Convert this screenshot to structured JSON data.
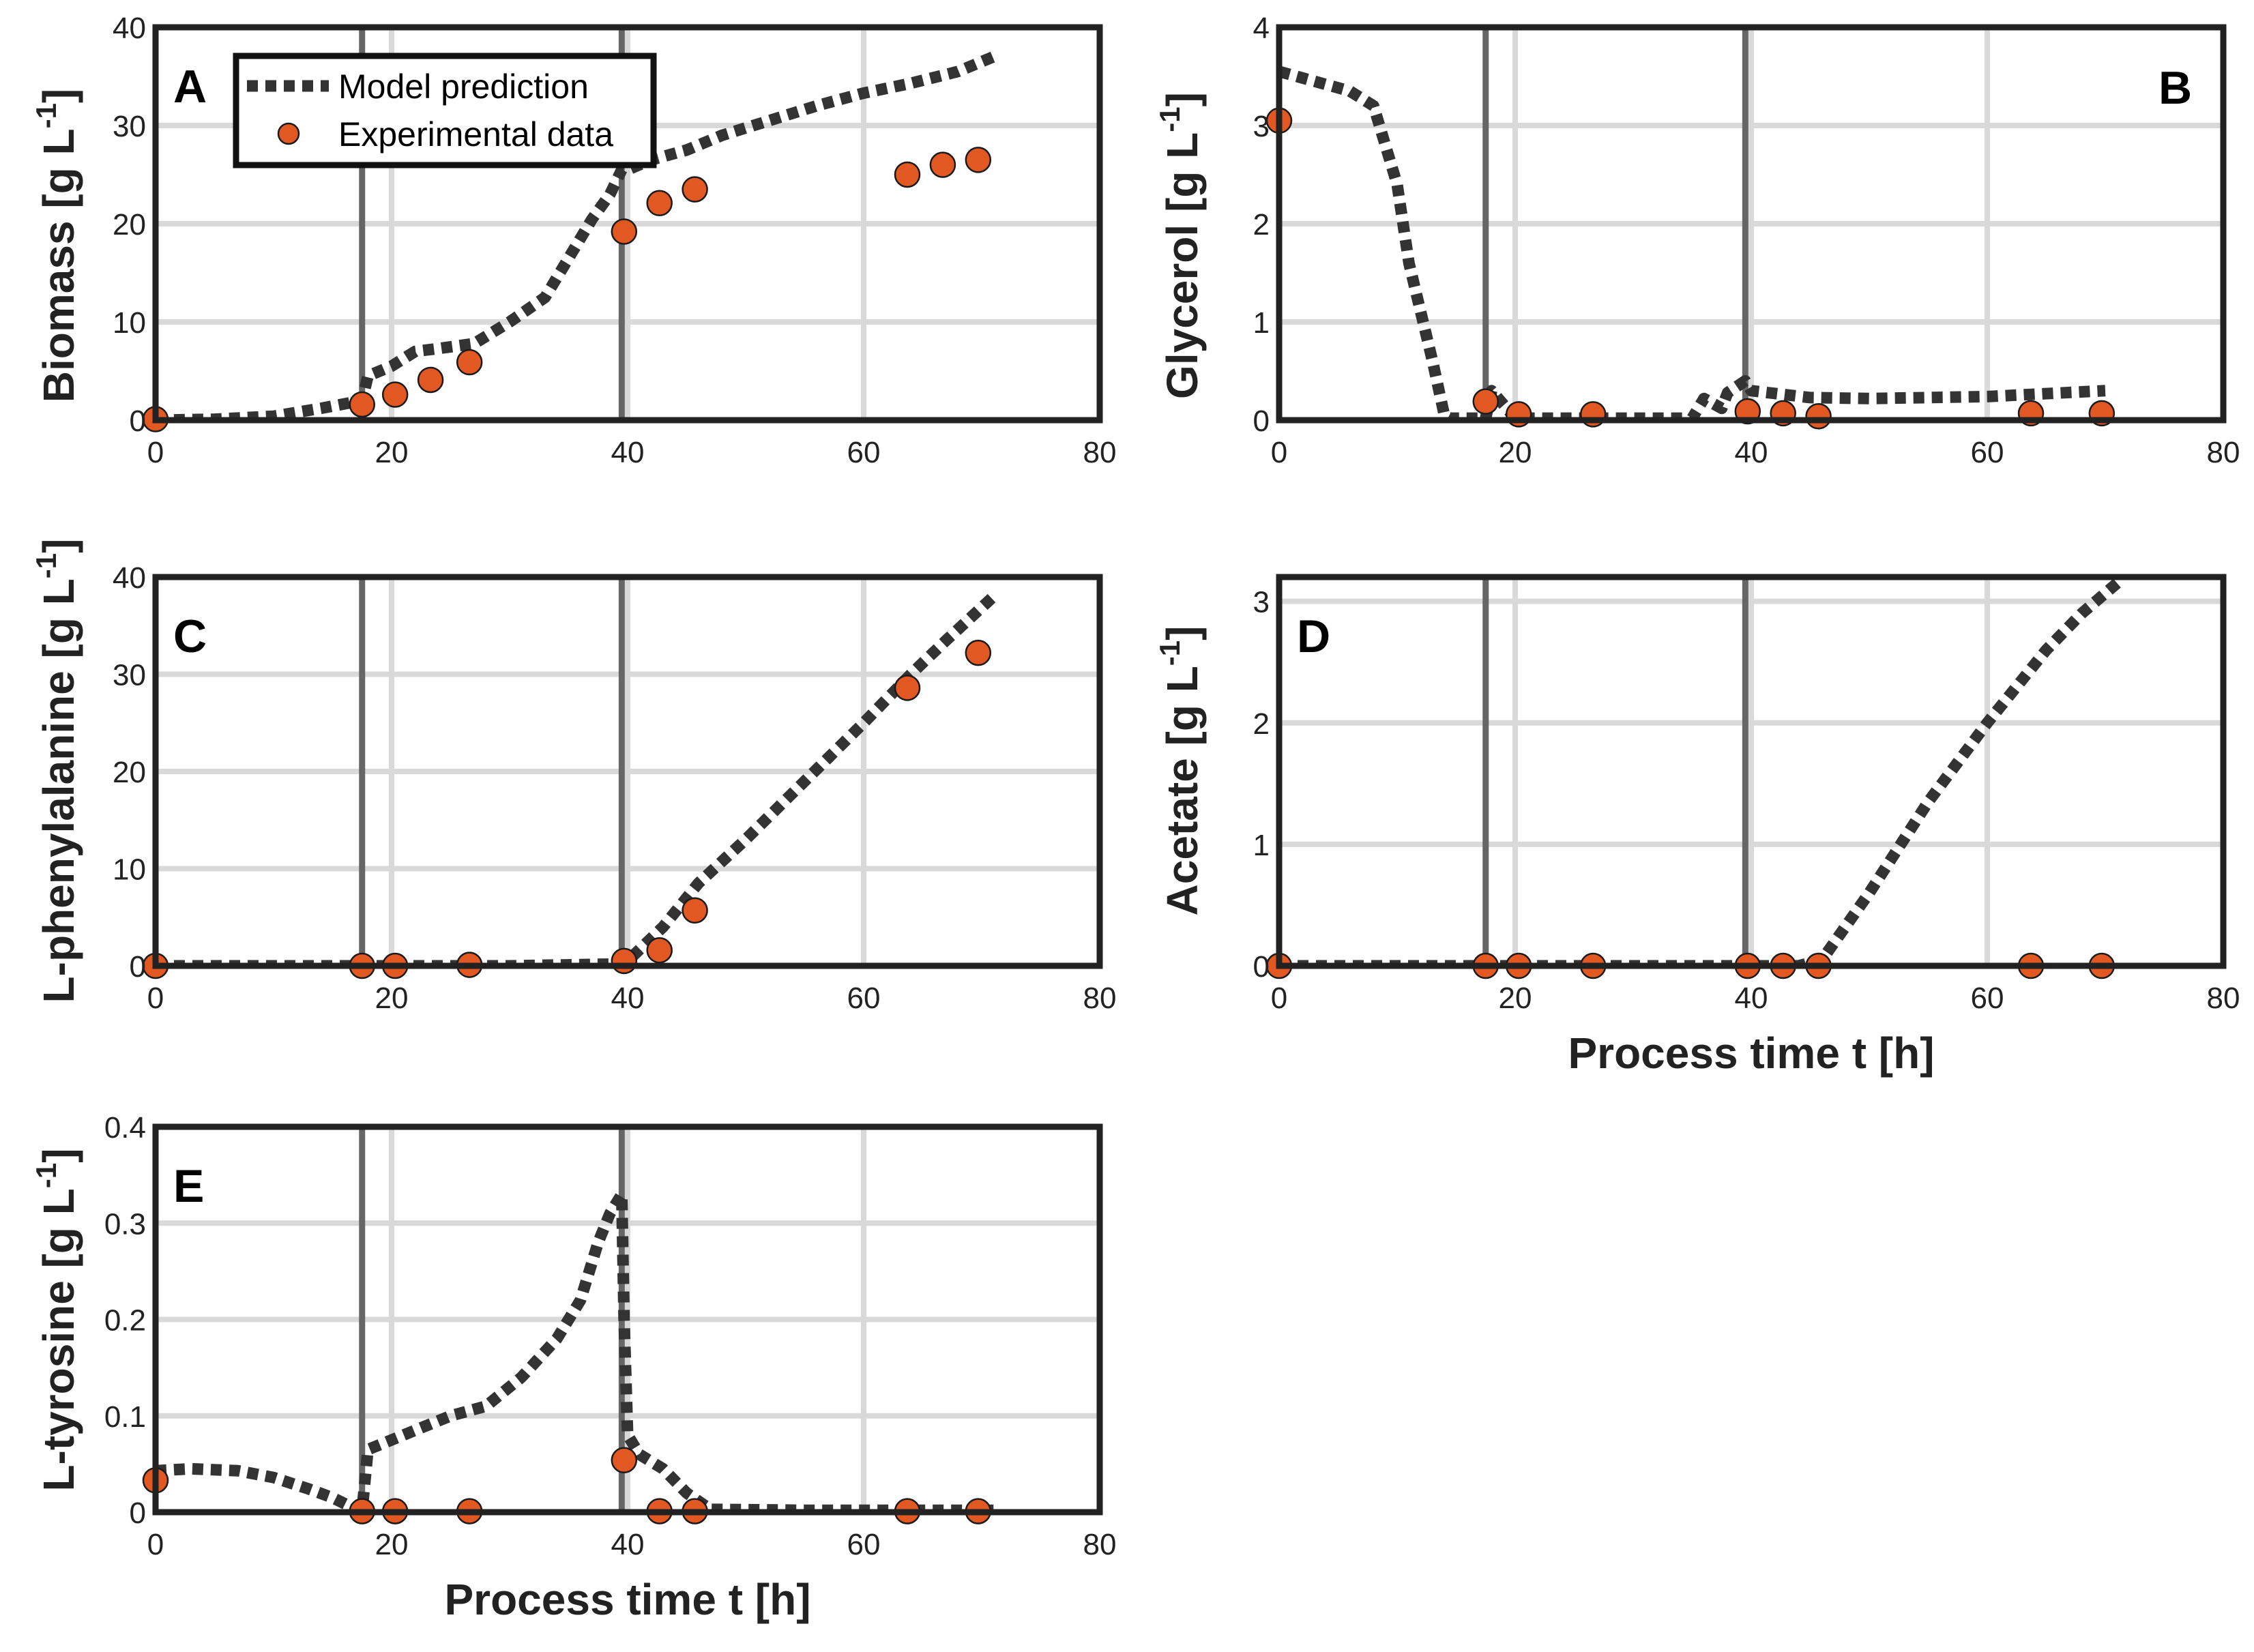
{
  "colors": {
    "model": "#333333",
    "data_fill": "#E25822",
    "data_edge": "#1a1a1a",
    "frame": "#222222",
    "grid": "#d9d9d9",
    "phase_line": "#666666"
  },
  "legend": {
    "model_label": "Model prediction",
    "data_label": "Experimental data"
  },
  "shared": {
    "xlabel": "Process time t [h]",
    "phase_boundaries": [
      17.5,
      39.5
    ]
  },
  "chart_data": [
    {
      "id": "A",
      "type": "line",
      "letter": "A",
      "ylabel_main": "Biomass [g L",
      "ylabel_sup": "-1",
      "ylabel_close": "]",
      "xlim": [
        0,
        80
      ],
      "ylim": [
        0,
        40
      ],
      "xticks": [
        0,
        20,
        40,
        60,
        80
      ],
      "yticks": [
        0,
        10,
        20,
        30,
        40
      ],
      "series": [
        {
          "name": "Model prediction",
          "style": "dotted-line",
          "x": [
            0,
            5,
            10,
            14,
            17.5,
            18,
            20,
            22,
            24,
            27,
            30,
            33,
            35,
            37,
            38.5,
            39.5,
            40,
            42,
            45,
            48,
            52,
            56,
            60,
            64,
            68,
            71
          ],
          "y": [
            0,
            0.1,
            0.4,
            1.2,
            2.0,
            4.5,
            5.5,
            7.0,
            7.3,
            7.8,
            10,
            12.5,
            16.5,
            20.5,
            23,
            25.5,
            25.5,
            26.5,
            27.5,
            29,
            30.5,
            32,
            33.3,
            34.3,
            35.5,
            37
          ]
        },
        {
          "name": "Experimental data",
          "style": "markers",
          "x": [
            0,
            17.5,
            20.3,
            23.3,
            26.6,
            39.7,
            42.7,
            45.7,
            63.7,
            66.7,
            69.7
          ],
          "y": [
            0.1,
            1.6,
            2.6,
            4.1,
            5.9,
            19.2,
            22.1,
            23.5,
            25.0,
            26.0,
            26.5
          ]
        }
      ]
    },
    {
      "id": "B",
      "type": "line",
      "letter": "B",
      "ylabel_main": "Glycerol [g L",
      "ylabel_sup": "-1",
      "ylabel_close": "]",
      "xlim": [
        0,
        80
      ],
      "ylim": [
        0,
        4
      ],
      "xticks": [
        0,
        20,
        40,
        60,
        80
      ],
      "yticks": [
        0,
        1,
        2,
        3,
        4
      ],
      "series": [
        {
          "name": "Model prediction",
          "style": "dotted-line",
          "x": [
            0,
            3,
            6,
            8,
            9,
            10,
            11,
            12,
            13,
            14,
            14.5,
            17.5,
            18,
            20,
            30,
            35,
            36,
            37.5,
            38,
            39.5,
            40,
            45,
            50,
            60,
            70
          ],
          "y": [
            3.55,
            3.45,
            3.35,
            3.2,
            2.8,
            2.4,
            1.6,
            1.1,
            0.6,
            0.05,
            0.02,
            0.02,
            0.3,
            0.02,
            0.02,
            0.02,
            0.22,
            0.12,
            0.28,
            0.4,
            0.3,
            0.23,
            0.22,
            0.24,
            0.3
          ]
        },
        {
          "name": "Experimental data",
          "style": "markers",
          "x": [
            0,
            17.5,
            20.3,
            26.6,
            39.7,
            42.7,
            45.7,
            63.7,
            69.7
          ],
          "y": [
            3.05,
            0.19,
            0.06,
            0.06,
            0.09,
            0.07,
            0.04,
            0.07,
            0.07
          ]
        }
      ]
    },
    {
      "id": "C",
      "type": "line",
      "letter": "C",
      "ylabel_main": "L-phenylalanine [g L",
      "ylabel_sup": "-1",
      "ylabel_close": "]",
      "xlim": [
        0,
        80
      ],
      "ylim": [
        0,
        40
      ],
      "xticks": [
        0,
        20,
        40,
        60,
        80
      ],
      "yticks": [
        0,
        10,
        20,
        30,
        40
      ],
      "series": [
        {
          "name": "Model prediction",
          "style": "dotted-line",
          "x": [
            0,
            17.5,
            20,
            30,
            39.5,
            40,
            43,
            46,
            50,
            55,
            60,
            64,
            67,
            71
          ],
          "y": [
            0,
            0,
            0,
            0,
            0.2,
            0.5,
            4,
            8.5,
            13,
            19,
            25,
            30,
            33.5,
            38
          ]
        },
        {
          "name": "Experimental data",
          "style": "markers",
          "x": [
            0,
            17.5,
            20.3,
            26.6,
            39.7,
            42.7,
            45.7,
            63.7,
            69.7
          ],
          "y": [
            0,
            0,
            0,
            0.1,
            0.5,
            1.6,
            5.7,
            28.6,
            32.2
          ]
        }
      ]
    },
    {
      "id": "D",
      "type": "line",
      "letter": "D",
      "ylabel_main": "Acetate [g L",
      "ylabel_sup": "-1",
      "ylabel_close": "]",
      "xlim": [
        0,
        80
      ],
      "ylim": [
        0,
        3.2
      ],
      "xticks": [
        0,
        20,
        40,
        60,
        80
      ],
      "yticks": [
        0,
        1,
        2,
        3
      ],
      "series": [
        {
          "name": "Model prediction",
          "style": "dotted-line",
          "x": [
            0,
            20,
            40,
            44,
            46,
            50,
            55,
            60,
            65,
            68,
            71
          ],
          "y": [
            0,
            0,
            0,
            0,
            0.05,
            0.6,
            1.35,
            2.0,
            2.6,
            2.9,
            3.15
          ]
        },
        {
          "name": "Experimental data",
          "style": "markers",
          "x": [
            0,
            17.5,
            20.3,
            26.6,
            39.7,
            42.7,
            45.7,
            63.7,
            69.7
          ],
          "y": [
            0,
            0,
            0,
            0,
            0,
            0,
            0,
            0,
            0
          ]
        }
      ]
    },
    {
      "id": "E",
      "type": "line",
      "letter": "E",
      "ylabel_main": "L-tyrosine [g L",
      "ylabel_sup": "-1",
      "ylabel_close": "]",
      "xlim": [
        0,
        80
      ],
      "ylim": [
        0,
        0.4
      ],
      "xticks": [
        0,
        20,
        40,
        60,
        80
      ],
      "yticks": [
        0,
        0.1,
        0.2,
        0.3,
        0.4
      ],
      "series": [
        {
          "name": "Model prediction",
          "style": "dotted-line",
          "x": [
            0,
            3,
            7,
            10,
            13,
            15,
            17,
            17.5,
            18,
            20,
            22,
            25,
            28,
            31,
            34,
            36,
            37.5,
            38.5,
            39.5,
            39.7,
            40,
            41,
            43,
            45,
            47,
            55,
            65,
            71
          ],
          "y": [
            0.043,
            0.045,
            0.043,
            0.036,
            0.024,
            0.015,
            0.003,
            0.002,
            0.065,
            0.075,
            0.085,
            0.1,
            0.11,
            0.14,
            0.18,
            0.22,
            0.28,
            0.31,
            0.33,
            0.2,
            0.08,
            0.06,
            0.045,
            0.02,
            0.003,
            0.002,
            0.002,
            0.002
          ]
        },
        {
          "name": "Experimental data",
          "style": "markers",
          "x": [
            0,
            17.5,
            20.3,
            26.6,
            39.7,
            42.7,
            45.7,
            63.7,
            69.7
          ],
          "y": [
            0.033,
            0.001,
            0.001,
            0.001,
            0.054,
            0.001,
            0.001,
            0.001,
            0.001
          ]
        }
      ]
    }
  ]
}
